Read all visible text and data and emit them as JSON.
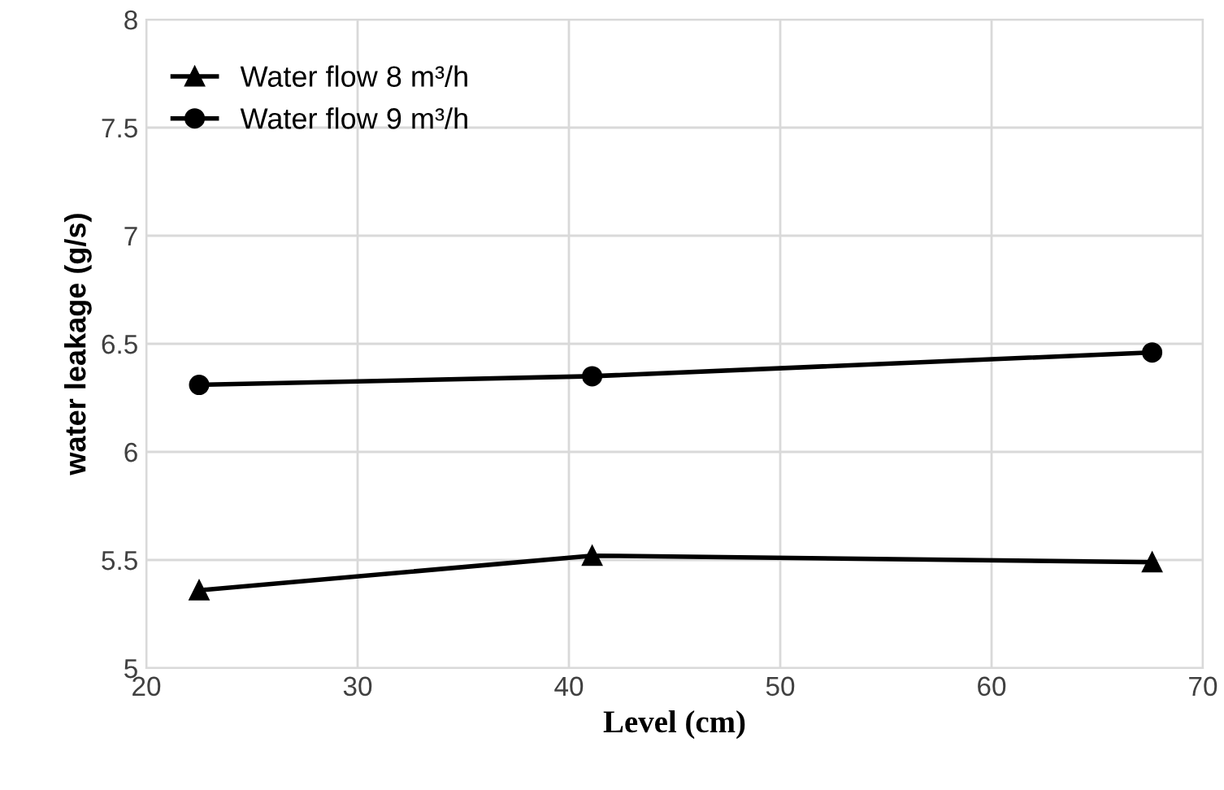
{
  "chart_data": {
    "type": "line",
    "xlabel": "Level (cm)",
    "ylabel": "water leakage (g/s)",
    "x": [
      22.5,
      41.1,
      67.6
    ],
    "series": [
      {
        "name": "Water flow 8 m³/h",
        "color": "#000000",
        "marker": "triangle",
        "values": [
          5.36,
          5.52,
          5.49
        ]
      },
      {
        "name": "Water flow 9 m³/h",
        "color": "#000000",
        "marker": "circle",
        "values": [
          6.31,
          6.35,
          6.46
        ]
      }
    ],
    "xlim": [
      20,
      70
    ],
    "xticks": [
      20,
      30,
      40,
      50,
      60,
      70
    ],
    "ylim": [
      5,
      8
    ],
    "yticks": [
      5,
      5.5,
      6,
      6.5,
      7,
      7.5,
      8
    ],
    "grid": true,
    "legend": "top left",
    "line_style": "solid"
  }
}
